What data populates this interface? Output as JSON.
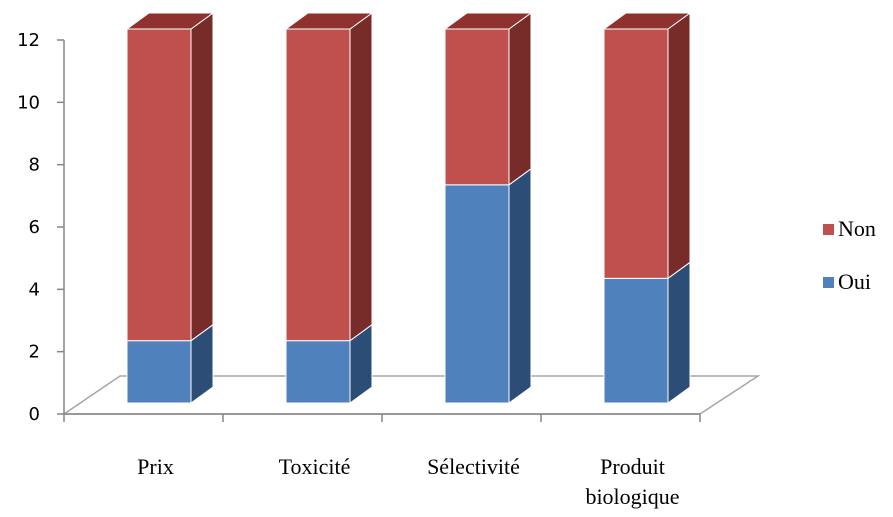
{
  "chart_data": {
    "type": "bar",
    "stacked": true,
    "three_d": true,
    "categories": [
      "Prix",
      "Toxicité",
      "Sélectivité",
      "Produit biologique"
    ],
    "category_lines": [
      [
        "Prix"
      ],
      [
        "Toxicité"
      ],
      [
        "Sélectivité"
      ],
      [
        "Produit",
        "biologique"
      ]
    ],
    "series": [
      {
        "name": "Oui",
        "values": [
          2,
          2,
          7,
          4
        ],
        "color": "#4F81BD",
        "side_color": "#2C4D75",
        "top_color": "#3B6BA5"
      },
      {
        "name": "Non",
        "values": [
          10,
          10,
          5,
          8
        ],
        "color": "#C0504D",
        "side_color": "#772C2A",
        "top_color": "#8E3230"
      }
    ],
    "ylim": [
      0,
      12
    ],
    "yticks": [
      0,
      2,
      4,
      6,
      8,
      10,
      12
    ],
    "legend_position": "right",
    "legend_order": [
      "Non",
      "Oui"
    ],
    "grid": false
  }
}
